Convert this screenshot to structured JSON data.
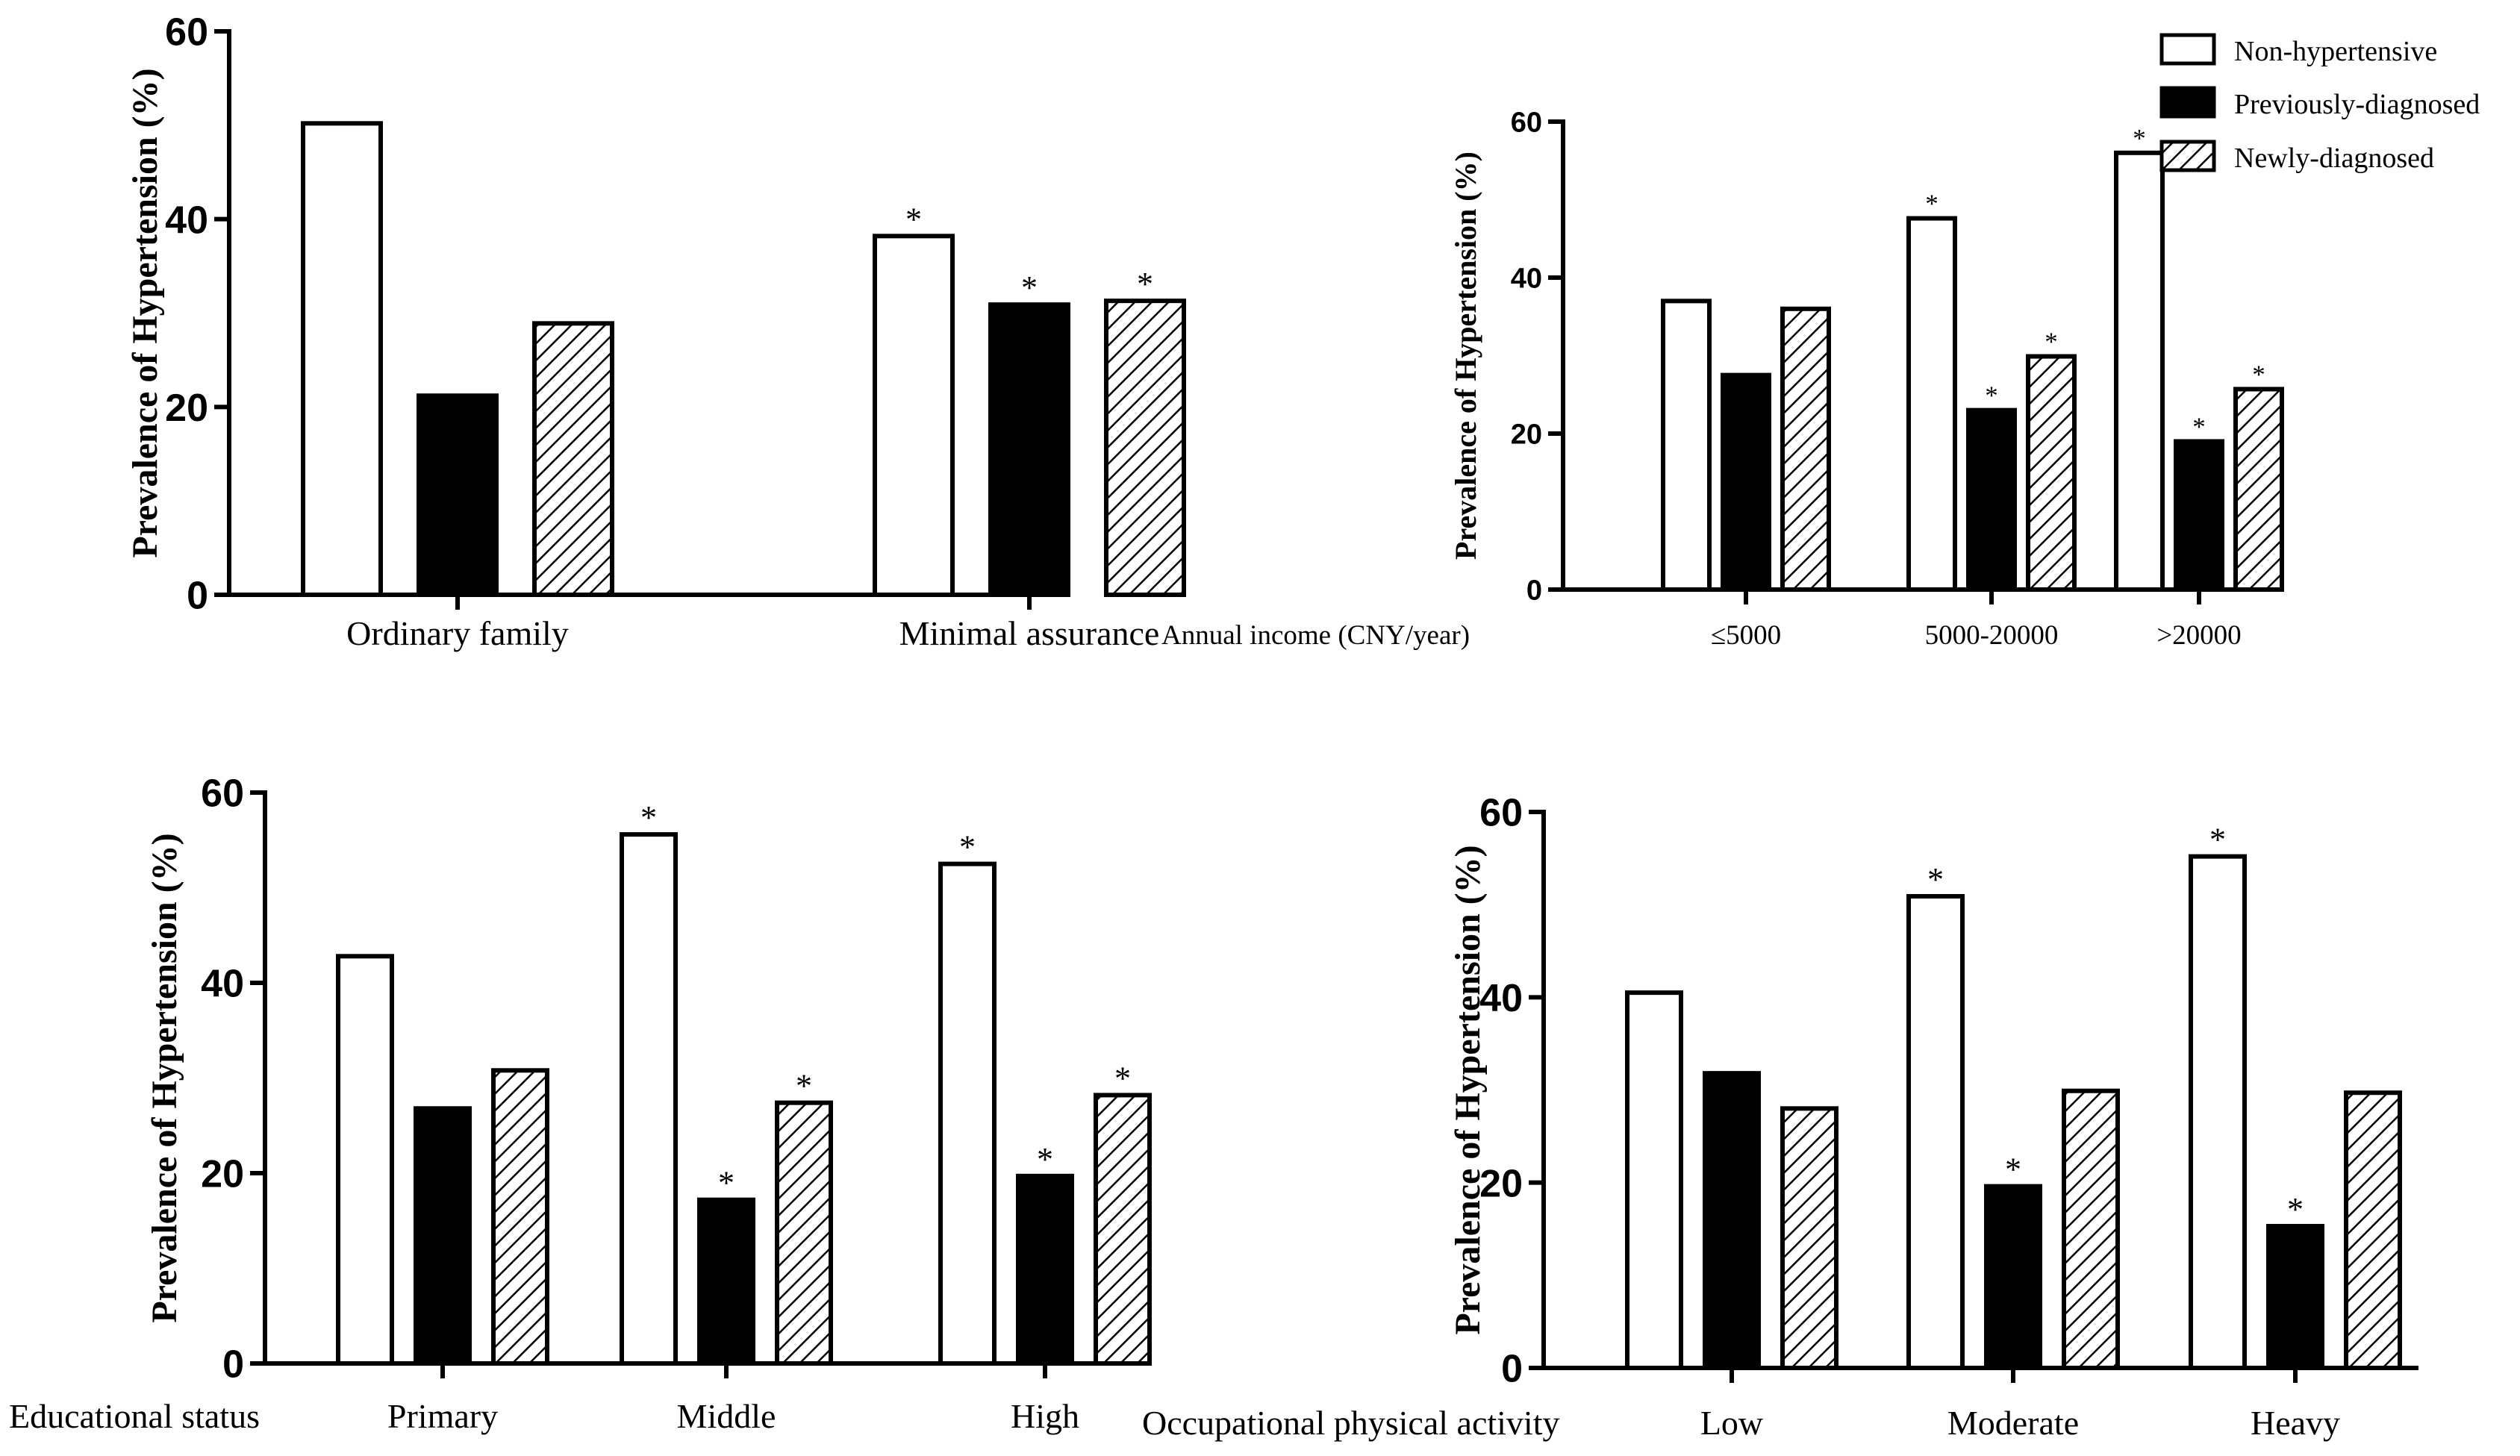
{
  "colors": {
    "ink": "#000000",
    "paper": "#ffffff"
  },
  "legend": {
    "items": [
      {
        "label": "Non-hypertensive",
        "pattern": "open"
      },
      {
        "label": "Previously-diagnosed",
        "pattern": "solid"
      },
      {
        "label": "Newly-diagnosed",
        "pattern": "hatch"
      }
    ]
  },
  "chart_data": [
    {
      "type": "bar",
      "title": "",
      "xlabel": "",
      "ylabel": "Prevalence of Hypertension (%)",
      "ylim": [
        0,
        60
      ],
      "yticks": [
        0,
        20,
        40,
        60
      ],
      "categories": [
        "Ordinary family",
        "Minimal assurance"
      ],
      "series": [
        {
          "name": "Non-hypertensive",
          "values": [
            50.2,
            38.2
          ]
        },
        {
          "name": "Previously-diagnosed",
          "values": [
            21.2,
            30.9
          ]
        },
        {
          "name": "Newly-diagnosed",
          "values": [
            28.9,
            31.3
          ]
        }
      ],
      "significant": [
        [
          false,
          true
        ],
        [
          false,
          true
        ],
        [
          false,
          true
        ]
      ],
      "marker": "*"
    },
    {
      "type": "bar",
      "title": "",
      "xlabel": "Annual income  (CNY/year)",
      "ylabel": "Prevalence of Hypertension (%)",
      "ylim": [
        0,
        60
      ],
      "yticks": [
        0,
        20,
        40,
        60
      ],
      "categories": [
        "≤5000",
        "5000-20000",
        ">20000"
      ],
      "series": [
        {
          "name": "Non-hypertensive",
          "values": [
            37.0,
            47.6,
            56.0
          ]
        },
        {
          "name": "Previously-diagnosed",
          "values": [
            27.5,
            23.0,
            19.0
          ]
        },
        {
          "name": "Newly-diagnosed",
          "values": [
            36.0,
            29.9,
            25.7
          ]
        }
      ],
      "significant": [
        [
          false,
          true,
          true
        ],
        [
          false,
          true,
          true
        ],
        [
          false,
          true,
          true
        ]
      ],
      "marker": "*"
    },
    {
      "type": "bar",
      "title": "",
      "xlabel": "Educational status",
      "ylabel": "Prevalence of Hypertension (%)",
      "ylim": [
        0,
        60
      ],
      "yticks": [
        0,
        20,
        40,
        60
      ],
      "categories": [
        "Primary",
        "Middle",
        "High"
      ],
      "series": [
        {
          "name": "Non-hypertensive",
          "values": [
            42.8,
            55.6,
            52.5
          ]
        },
        {
          "name": "Previously-diagnosed",
          "values": [
            26.8,
            17.2,
            19.7
          ]
        },
        {
          "name": "Newly-diagnosed",
          "values": [
            30.8,
            27.4,
            28.2
          ]
        }
      ],
      "significant": [
        [
          false,
          true,
          true
        ],
        [
          false,
          true,
          true
        ],
        [
          false,
          true,
          true
        ]
      ],
      "marker": "*"
    },
    {
      "type": "bar",
      "title": "",
      "xlabel": "Occupational physical activity",
      "ylabel": "Prevalence of Hypertension (%)",
      "ylim": [
        0,
        60
      ],
      "yticks": [
        0,
        20,
        40,
        60
      ],
      "categories": [
        "Low",
        "Moderate",
        "Heavy"
      ],
      "series": [
        {
          "name": "Non-hypertensive",
          "values": [
            40.5,
            50.9,
            55.2
          ]
        },
        {
          "name": "Previously-diagnosed",
          "values": [
            31.8,
            19.6,
            15.3
          ]
        },
        {
          "name": "Newly-diagnosed",
          "values": [
            28.0,
            29.9,
            29.7
          ]
        }
      ],
      "significant": [
        [
          false,
          true,
          true
        ],
        [
          false,
          true,
          true
        ],
        [
          false,
          false,
          false
        ]
      ],
      "marker": "*"
    }
  ]
}
